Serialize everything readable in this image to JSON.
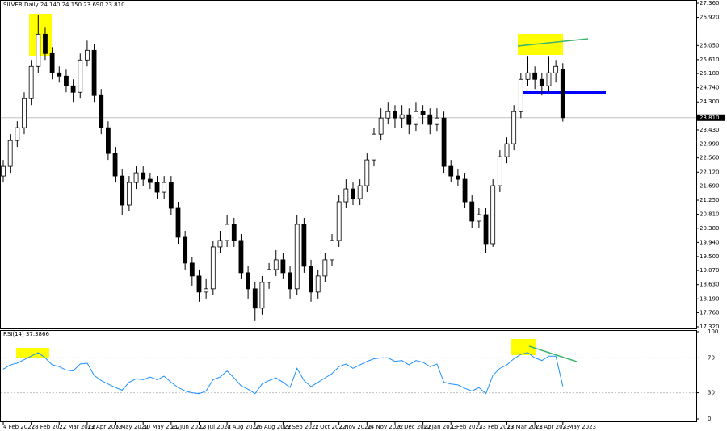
{
  "chart_data": {
    "type": "candlestick",
    "title": "SILVER,Daily  24.140 24.150 23.690 23.810",
    "categories": [
      "4 Feb 2022",
      null,
      null,
      null,
      "28 Feb 2022",
      null,
      null,
      null,
      "22 Mar 2022",
      null,
      null,
      null,
      "13 Apr 2022",
      null,
      null,
      null,
      "6 May 2022",
      null,
      null,
      null,
      "30 May 2022",
      null,
      null,
      null,
      "21 Jun 2022",
      null,
      null,
      null,
      "13 Jul 2022",
      null,
      null,
      null,
      "4 Aug 2022",
      null,
      null,
      null,
      "26 Aug 2022",
      null,
      null,
      null,
      "19 Sep 2022",
      null,
      null,
      null,
      "11 Oct 2022",
      null,
      null,
      null,
      "2 Nov 2022",
      null,
      null,
      null,
      "24 Nov 2022",
      null,
      null,
      null,
      "16 Dec 2022",
      null,
      null,
      null,
      "10 Jan 2023",
      null,
      null,
      null,
      "1 Feb 2023",
      null,
      null,
      null,
      "23 Feb 2023",
      null,
      null,
      null,
      "17 Mar 2023",
      null,
      null,
      null,
      "11 Apr 2023",
      null,
      null,
      null,
      "3 May 2023"
    ],
    "open": [
      22.0,
      22.3,
      23.1,
      23.5,
      24.4,
      25.4,
      26.4,
      25.8,
      25.2,
      25.1,
      24.8,
      24.6,
      25.6,
      25.9,
      24.5,
      23.5,
      22.7,
      22.0,
      21.1,
      21.8,
      22.1,
      21.9,
      21.8,
      21.5,
      21.8,
      21.0,
      20.1,
      19.3,
      18.9,
      18.4,
      18.5,
      19.8,
      20.0,
      20.5,
      20.0,
      19.0,
      18.5,
      17.9,
      18.7,
      19.1,
      19.4,
      19.0,
      18.5,
      20.5,
      19.2,
      18.4,
      18.9,
      19.4,
      20.0,
      21.2,
      21.6,
      21.3,
      21.7,
      22.5,
      23.3,
      23.8,
      24.0,
      23.8,
      23.9,
      23.6,
      24.0,
      23.9,
      23.6,
      23.8,
      22.3,
      22.0,
      21.9,
      21.2,
      20.6,
      20.8,
      19.9,
      21.7,
      22.6,
      23.0,
      24.0,
      25.0,
      25.2,
      25.0,
      24.8,
      25.2,
      25.3
    ],
    "high": [
      22.5,
      23.3,
      23.7,
      24.6,
      25.6,
      27.0,
      26.6,
      26.0,
      25.4,
      25.3,
      25.0,
      25.8,
      26.2,
      26.1,
      24.7,
      23.7,
      22.9,
      22.2,
      22.0,
      22.3,
      22.3,
      22.1,
      22.0,
      22.0,
      22.0,
      21.2,
      20.3,
      19.5,
      19.1,
      18.8,
      20.0,
      20.3,
      20.8,
      20.7,
      20.2,
      19.2,
      18.7,
      18.9,
      19.3,
      19.7,
      19.6,
      19.2,
      20.8,
      20.7,
      19.4,
      19.1,
      19.6,
      20.2,
      21.4,
      21.9,
      21.8,
      21.9,
      22.7,
      23.5,
      24.1,
      24.3,
      24.2,
      24.2,
      24.1,
      24.3,
      24.2,
      24.1,
      24.1,
      24.0,
      22.5,
      22.2,
      22.1,
      21.4,
      21.0,
      21.0,
      21.9,
      22.8,
      23.2,
      24.2,
      25.2,
      25.7,
      25.4,
      25.2,
      25.7,
      25.6,
      25.5
    ],
    "low": [
      21.8,
      22.1,
      22.9,
      23.3,
      24.2,
      25.2,
      25.6,
      25.0,
      24.9,
      24.6,
      24.3,
      24.4,
      25.4,
      24.3,
      23.3,
      22.5,
      21.8,
      20.8,
      20.9,
      21.6,
      21.7,
      21.6,
      21.3,
      21.3,
      20.8,
      19.9,
      19.1,
      18.6,
      18.1,
      18.2,
      18.3,
      19.6,
      19.8,
      19.8,
      18.8,
      18.2,
      17.5,
      17.7,
      18.5,
      18.9,
      18.8,
      18.2,
      18.3,
      19.0,
      18.1,
      18.2,
      18.7,
      19.2,
      19.8,
      21.0,
      21.1,
      21.1,
      21.5,
      22.3,
      23.1,
      23.6,
      23.5,
      23.5,
      23.3,
      23.4,
      23.6,
      23.3,
      23.4,
      22.1,
      21.8,
      21.7,
      21.0,
      20.4,
      20.4,
      19.6,
      19.8,
      21.5,
      22.4,
      22.8,
      23.8,
      24.8,
      24.7,
      24.5,
      24.6,
      24.9,
      23.69
    ],
    "close": [
      22.3,
      23.1,
      23.5,
      24.4,
      25.4,
      26.4,
      25.8,
      25.2,
      25.1,
      24.8,
      24.6,
      25.6,
      25.9,
      24.5,
      23.5,
      22.7,
      22.0,
      21.1,
      21.8,
      22.1,
      21.9,
      21.8,
      21.5,
      21.8,
      21.0,
      20.1,
      19.3,
      18.9,
      18.4,
      18.5,
      19.8,
      20.0,
      20.5,
      20.0,
      19.0,
      18.5,
      17.9,
      18.7,
      19.1,
      19.4,
      19.0,
      18.5,
      20.5,
      19.2,
      18.4,
      18.9,
      19.4,
      20.0,
      21.2,
      21.6,
      21.3,
      21.7,
      22.5,
      23.3,
      23.8,
      24.0,
      23.8,
      23.9,
      23.6,
      24.0,
      23.9,
      23.6,
      23.8,
      22.3,
      22.0,
      21.9,
      21.2,
      20.6,
      20.8,
      19.9,
      21.7,
      22.6,
      23.0,
      24.0,
      25.0,
      25.2,
      25.0,
      24.8,
      25.2,
      25.4,
      23.81
    ],
    "ylim": [
      17.32,
      27.36
    ],
    "yticks": [
      {
        "value": 27.36,
        "label": "27.360"
      },
      {
        "value": 26.92,
        "label": "26.920"
      },
      {
        "value": 26.05,
        "label": "26.050"
      },
      {
        "value": 25.61,
        "label": "25.610"
      },
      {
        "value": 25.18,
        "label": "25.180"
      },
      {
        "value": 24.74,
        "label": "24.740"
      },
      {
        "value": 24.3,
        "label": "24.300"
      },
      {
        "value": 23.43,
        "label": "23.430"
      },
      {
        "value": 22.99,
        "label": "22.990"
      },
      {
        "value": 22.56,
        "label": "22.560"
      },
      {
        "value": 22.12,
        "label": "22.120"
      },
      {
        "value": 21.69,
        "label": "21.690"
      },
      {
        "value": 21.25,
        "label": "21.250"
      },
      {
        "value": 20.81,
        "label": "20.810"
      },
      {
        "value": 20.38,
        "label": "20.380"
      },
      {
        "value": 19.94,
        "label": "19.940"
      },
      {
        "value": 19.5,
        "label": "19.500"
      },
      {
        "value": 19.07,
        "label": "19.070"
      },
      {
        "value": 18.63,
        "label": "18.630"
      },
      {
        "value": 18.19,
        "label": "18.190"
      },
      {
        "value": 17.76,
        "label": "17.760"
      },
      {
        "value": 17.32,
        "label": "17.320"
      }
    ],
    "last_price": {
      "value": 23.81,
      "label": "23.810"
    },
    "rsi": {
      "title": "RSI(14) 37.3866",
      "color": "#1e90ff",
      "values": [
        57,
        62,
        64,
        68,
        72,
        76,
        70,
        62,
        60,
        56,
        55,
        63,
        64,
        50,
        44,
        40,
        36,
        33,
        42,
        46,
        45,
        48,
        45,
        49,
        42,
        36,
        32,
        30,
        29,
        32,
        45,
        48,
        55,
        47,
        38,
        34,
        29,
        40,
        44,
        47,
        42,
        36,
        58,
        44,
        37,
        42,
        47,
        52,
        60,
        63,
        58,
        62,
        66,
        69,
        70,
        70,
        66,
        67,
        62,
        67,
        65,
        60,
        63,
        42,
        40,
        39,
        35,
        32,
        36,
        29,
        50,
        58,
        62,
        69,
        74,
        76,
        70,
        67,
        72,
        72,
        37.3866
      ],
      "ylim": [
        0,
        100
      ],
      "yticks": [
        0,
        30,
        70,
        100
      ]
    }
  }
}
